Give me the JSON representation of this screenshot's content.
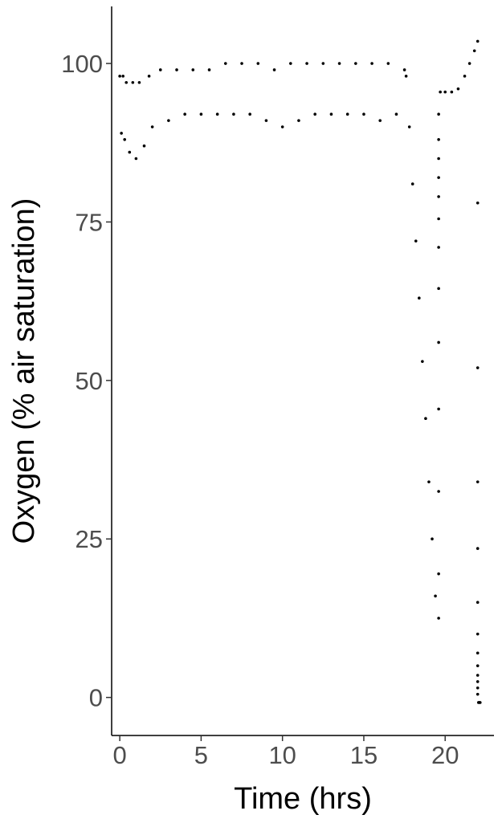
{
  "chart_data": {
    "type": "scatter",
    "title": "",
    "xlabel": "Time (hrs)",
    "ylabel": "Oxygen (% air saturation)",
    "xlim": [
      -0.5,
      23.0
    ],
    "ylim": [
      -6.0,
      109.0
    ],
    "x_ticks": [
      0,
      5,
      10,
      15,
      20
    ],
    "y_ticks": [
      0,
      25,
      50,
      75,
      100
    ],
    "grid": false,
    "legend": "none",
    "marker_color": "#000000",
    "series": [
      {
        "segments": [
          {
            "description": "oscillating saturation between lower and upper bounds",
            "points": [
              [
                0.0,
                98
              ],
              [
                0.1,
                89
              ],
              [
                0.2,
                98
              ],
              [
                0.3,
                88
              ],
              [
                0.4,
                97
              ],
              [
                0.6,
                86
              ],
              [
                0.8,
                97
              ],
              [
                1.0,
                85
              ],
              [
                1.2,
                97
              ],
              [
                1.5,
                87
              ],
              [
                1.8,
                98
              ],
              [
                2.0,
                90
              ],
              [
                2.5,
                99
              ],
              [
                3.0,
                91
              ],
              [
                3.5,
                99
              ],
              [
                4.0,
                92
              ],
              [
                4.5,
                99
              ],
              [
                5.0,
                92
              ],
              [
                5.5,
                99
              ],
              [
                6.0,
                92
              ],
              [
                6.5,
                100
              ],
              [
                7.0,
                92
              ],
              [
                7.5,
                100
              ],
              [
                8.0,
                92
              ],
              [
                8.5,
                100
              ],
              [
                9.0,
                91
              ],
              [
                9.5,
                99
              ],
              [
                10.0,
                90
              ],
              [
                10.5,
                100
              ],
              [
                11.0,
                91
              ],
              [
                11.5,
                100
              ],
              [
                12.0,
                92
              ],
              [
                12.5,
                100
              ],
              [
                13.0,
                92
              ],
              [
                13.5,
                100
              ],
              [
                14.0,
                92
              ],
              [
                14.5,
                100
              ],
              [
                15.0,
                92
              ],
              [
                15.5,
                100
              ],
              [
                16.0,
                91
              ],
              [
                16.5,
                100
              ],
              [
                17.0,
                92
              ],
              [
                17.5,
                99
              ]
            ]
          },
          {
            "description": "declining saturation",
            "points": [
              [
                17.6,
                98
              ],
              [
                17.8,
                90
              ],
              [
                18.0,
                81
              ],
              [
                18.2,
                72
              ],
              [
                18.4,
                63
              ],
              [
                18.6,
                53
              ],
              [
                18.8,
                44
              ],
              [
                19.0,
                34
              ],
              [
                19.2,
                25
              ],
              [
                19.4,
                16
              ],
              [
                19.6,
                12.5
              ]
            ]
          },
          {
            "description": "isolated points",
            "points": [
              [
                19.6,
                92
              ],
              [
                19.6,
                88
              ],
              [
                19.6,
                85
              ],
              [
                19.6,
                82
              ],
              [
                19.6,
                79
              ],
              [
                19.6,
                75.5
              ],
              [
                19.6,
                71
              ],
              [
                19.6,
                64.5
              ],
              [
                19.6,
                56
              ],
              [
                19.6,
                45.5
              ],
              [
                19.6,
                32.5
              ],
              [
                19.6,
                19.5
              ]
            ]
          },
          {
            "description": "recovery",
            "points": [
              [
                19.7,
                95.5
              ],
              [
                20.0,
                95.5
              ],
              [
                20.4,
                95.5
              ],
              [
                20.8,
                96
              ],
              [
                21.2,
                98
              ],
              [
                21.5,
                100
              ],
              [
                21.8,
                102
              ],
              [
                22.0,
                103.5
              ]
            ]
          },
          {
            "description": "isolated points",
            "points": [
              [
                22.0,
                78
              ],
              [
                22.0,
                52
              ],
              [
                22.0,
                34
              ],
              [
                22.0,
                23.5
              ],
              [
                22.0,
                15
              ],
              [
                22.0,
                10
              ],
              [
                22.0,
                7
              ],
              [
                22.0,
                5
              ],
              [
                22.0,
                3.5
              ],
              [
                22.0,
                2.5
              ],
              [
                22.0,
                1.5
              ],
              [
                22.0,
                0.5
              ],
              [
                22.05,
                -0.8
              ],
              [
                22.1,
                -0.8
              ],
              [
                22.15,
                -0.8
              ]
            ]
          }
        ]
      }
    ]
  }
}
